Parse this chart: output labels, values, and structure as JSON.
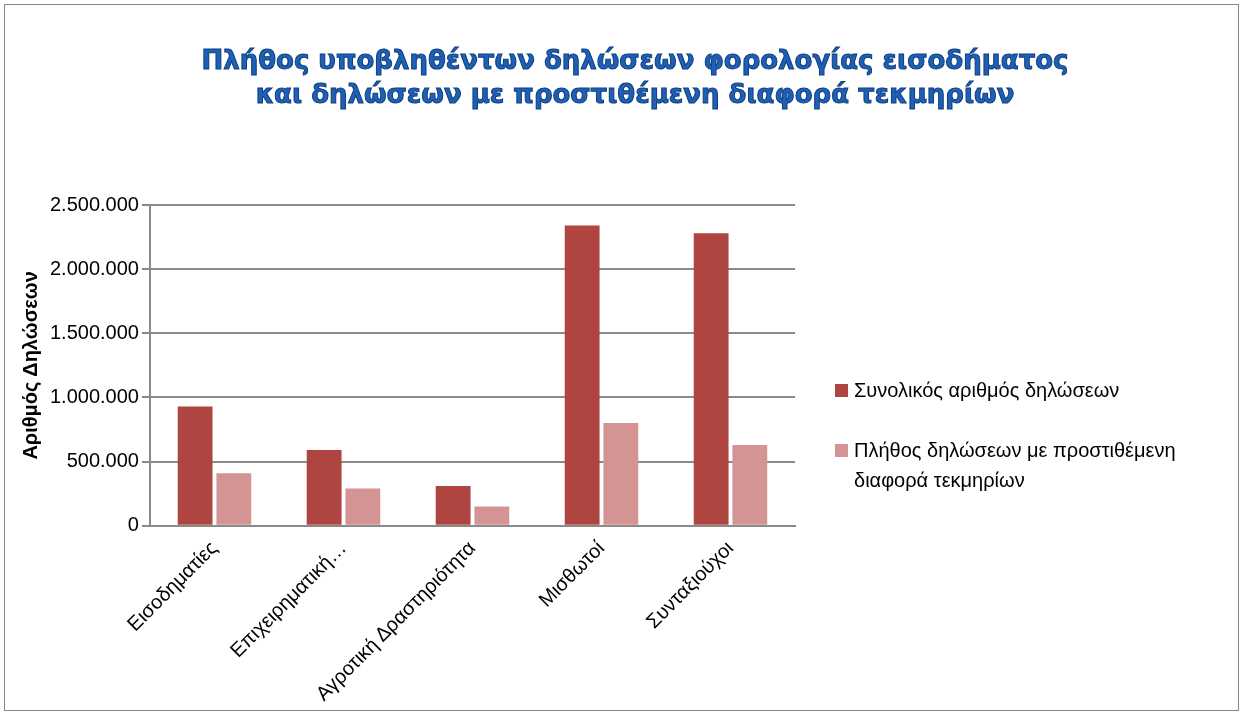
{
  "chart_data": {
    "type": "bar",
    "title": "Πλήθος υποβληθέντων δηλώσεων φορολογίας εισοδήματος και δηλώσεων με προστιθέμενη διαφορά τεκμηρίων",
    "ylabel": "Αριθμός Δηλώσεων",
    "categories": [
      "Εισοδηματίες",
      "Επιχειρηματική…",
      "Αγροτική Δραστηριότητα",
      "Μισθωτοί",
      "Συνταξιούχοι"
    ],
    "series": [
      {
        "name": "Συνολικός αριθμός δηλώσεων",
        "color": "#ae4541",
        "values": [
          930000,
          590000,
          310000,
          2340000,
          2280000
        ]
      },
      {
        "name": "Πλήθος δηλώσεων με προστιθέμενη διαφορά τεκμηρίων",
        "color": "#d59494",
        "values": [
          410000,
          290000,
          150000,
          800000,
          630000
        ]
      }
    ],
    "ylim": [
      0,
      2500000
    ],
    "yticks": [
      {
        "value": 0,
        "label": "0"
      },
      {
        "value": 500000,
        "label": "500.000"
      },
      {
        "value": 1000000,
        "label": "1.000.000"
      },
      {
        "value": 1500000,
        "label": "1.500.000"
      },
      {
        "value": 2000000,
        "label": "2.000.000"
      },
      {
        "value": 2500000,
        "label": "2.500.000"
      }
    ],
    "grid": "y",
    "legend": "right"
  }
}
